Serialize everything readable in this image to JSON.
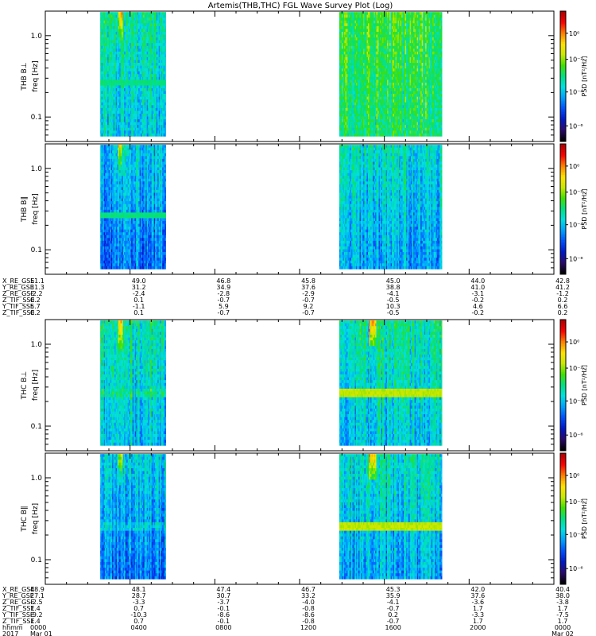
{
  "title": "Artemis(THB,THC) FGL Wave Survey Plot (Log)",
  "colors": {
    "colormap": [
      "#000000",
      "#2a0a6e",
      "#0018c8",
      "#0050ff",
      "#00a0ff",
      "#00e0e0",
      "#00e080",
      "#40e000",
      "#c8e800",
      "#ffe000",
      "#ff8000",
      "#ff0000",
      "#b00000"
    ],
    "axis": "#000000",
    "background": "#ffffff"
  },
  "chart_data": [
    {
      "type": "heatmap",
      "panel": "THB B⊥",
      "ylabel_probe": "THB B⊥",
      "ylabel": "freq [Hz]",
      "yscale": "log",
      "ylim": [
        0.05,
        2.0
      ],
      "yticks": [
        "1.0",
        "0.1"
      ],
      "x": [
        "0000",
        "0400",
        "0800",
        "1200",
        "1600",
        "2000",
        "0000"
      ],
      "data_intervals": [
        [
          0.108,
          0.237
        ],
        [
          0.578,
          0.78
        ]
      ],
      "colorbar": {
        "label": "PSD [nT²/Hz]",
        "scale": "log",
        "ticks": [
          "10⁰",
          "10⁻²",
          "10⁻⁴",
          "10⁻⁶"
        ]
      }
    },
    {
      "type": "heatmap",
      "panel": "THB B∥",
      "ylabel_probe": "THB B∥",
      "ylabel": "freq [Hz]",
      "yscale": "log",
      "ylim": [
        0.05,
        2.0
      ],
      "yticks": [
        "1.0",
        "0.1"
      ],
      "x": [
        "0000",
        "0400",
        "0800",
        "1200",
        "1600",
        "2000",
        "0000"
      ],
      "data_intervals": [
        [
          0.108,
          0.237
        ],
        [
          0.578,
          0.78
        ]
      ],
      "colorbar": {
        "label": "PSD [nT²/Hz]",
        "scale": "log",
        "ticks": [
          "10⁰",
          "10⁻²",
          "10⁻⁴",
          "10⁻⁶"
        ]
      }
    },
    {
      "type": "heatmap",
      "panel": "THC B⊥",
      "ylabel_probe": "THC B⊥",
      "ylabel": "freq [Hz]",
      "yscale": "log",
      "ylim": [
        0.05,
        2.0
      ],
      "yticks": [
        "1.0",
        "0.1"
      ],
      "x": [
        "0000",
        "0400",
        "0800",
        "1200",
        "1600",
        "2000",
        "0000"
      ],
      "data_intervals": [
        [
          0.108,
          0.237
        ],
        [
          0.578,
          0.78
        ]
      ],
      "colorbar": {
        "label": "PSD [nT²/Hz]",
        "scale": "log",
        "ticks": [
          "10⁰",
          "10⁻²",
          "10⁻⁴",
          "10⁻⁶"
        ]
      }
    },
    {
      "type": "heatmap",
      "panel": "THC B∥",
      "ylabel_probe": "THC B∥",
      "ylabel": "freq [Hz]",
      "yscale": "log",
      "ylim": [
        0.05,
        2.0
      ],
      "yticks": [
        "1.0",
        "0.1"
      ],
      "x": [
        "0000",
        "0400",
        "0800",
        "1200",
        "1600",
        "2000",
        "0000"
      ],
      "data_intervals": [
        [
          0.108,
          0.237
        ],
        [
          0.578,
          0.78
        ]
      ],
      "colorbar": {
        "label": "PSD [nT²/Hz]",
        "scale": "log",
        "ticks": [
          "10⁰",
          "10⁻²",
          "10⁻⁴",
          "10⁻⁶"
        ]
      }
    }
  ],
  "ephemeris_top": {
    "rows": [
      {
        "label": "X_RE_GSE",
        "values": [
          "51.1",
          "49.0",
          "46.8",
          "45.8",
          "45.0",
          "44.0",
          "42.8"
        ]
      },
      {
        "label": "Y_RE_GSE",
        "values": [
          "31.3",
          "31.2",
          "34.9",
          "37.6",
          "38.8",
          "41.0",
          "41.2"
        ]
      },
      {
        "label": "Z_RE_GSE",
        "values": [
          "-2.2",
          "-2.4",
          "-2.8",
          "-2.9",
          "-4.1",
          "-3.1",
          "-1.2"
        ]
      },
      {
        "label": "Z_TIF_SSE",
        "values": [
          "0.2",
          "0.1",
          "-0.7",
          "-0.7",
          "-0.5",
          "-0.2",
          "0.2"
        ]
      },
      {
        "label": "Y_TIF_SSE",
        "values": [
          "5.7",
          "-1.1",
          "5.9",
          "9.2",
          "10.3",
          "4.6",
          "6.6"
        ]
      },
      {
        "label": "Z_TIF_SSE",
        "values": [
          "0.2",
          "0.1",
          "-0.7",
          "-0.7",
          "-0.5",
          "-0.2",
          "0.2"
        ]
      }
    ]
  },
  "ephemeris_bottom": {
    "rows": [
      {
        "label": "X_RE_GSE",
        "values": [
          "48.9",
          "48.1",
          "47.4",
          "46.7",
          "45.3",
          "42.0",
          "40.4"
        ]
      },
      {
        "label": "Y_RE_GSE",
        "values": [
          "27.1",
          "28.7",
          "30.7",
          "33.2",
          "35.9",
          "37.6",
          "38.0"
        ]
      },
      {
        "label": "Z_RE_GSE",
        "values": [
          "-2.5",
          "-3.3",
          "-3.7",
          "-4.0",
          "-4.1",
          "-3.6",
          "-3.8"
        ]
      },
      {
        "label": "Z_TIF_SSE",
        "values": [
          "1.4",
          "0.7",
          "-0.1",
          "-0.8",
          "-0.7",
          "1.7",
          "1.7"
        ]
      },
      {
        "label": "Y_TIF_SSE",
        "values": [
          "-9.2",
          "-10.3",
          "-8.6",
          "-8.6",
          "0.2",
          "-3.3",
          "-7.5"
        ]
      },
      {
        "label": "Z_TIF_SSE",
        "values": [
          "1.4",
          "0.7",
          "-0.1",
          "-0.8",
          "-0.7",
          "1.7",
          "1.7"
        ]
      },
      {
        "label": "hhmm",
        "values": [
          "0000",
          "0400",
          "0800",
          "1200",
          "1600",
          "2000",
          "0000"
        ]
      },
      {
        "label": "2017",
        "values": [
          "Mar 01",
          "",
          "",
          "",
          "",
          "",
          "Mar 02"
        ]
      }
    ]
  }
}
